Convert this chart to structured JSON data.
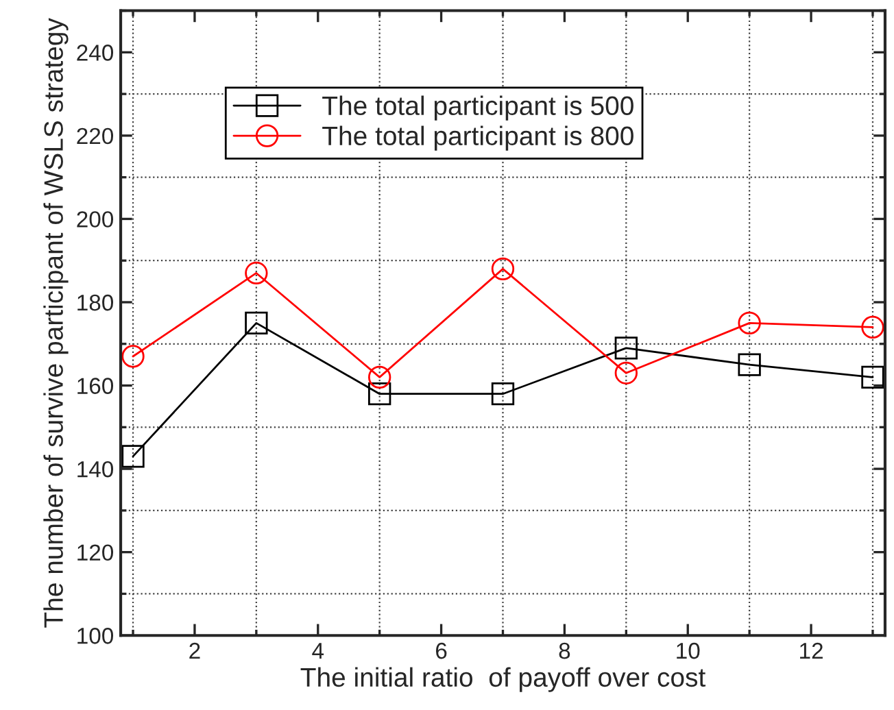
{
  "chart_data": {
    "type": "line",
    "xlabel": "The initial ratio  of payoff over cost",
    "ylabel": "The number of survive participant of WSLS strategy",
    "x": [
      1,
      3,
      5,
      7,
      9,
      11,
      13
    ],
    "series": [
      {
        "name": "The total participant is 500",
        "color": "#000000",
        "marker": "square",
        "values": [
          143,
          175,
          158,
          158,
          169,
          165,
          162
        ]
      },
      {
        "name": "The total participant is 800",
        "color": "#ff0000",
        "marker": "circle",
        "values": [
          167,
          187,
          162,
          188,
          163,
          175,
          174
        ]
      }
    ],
    "xlim": [
      0.8,
      13.2
    ],
    "xticks": [
      {
        "value": 1,
        "label": null
      },
      2,
      {
        "value": 3,
        "label": null
      },
      4,
      {
        "value": 5,
        "label": null
      },
      6,
      {
        "value": 7,
        "label": null
      },
      8,
      {
        "value": 9,
        "label": null
      },
      10,
      {
        "value": 11,
        "label": null
      },
      12,
      {
        "value": 13,
        "label": null
      }
    ],
    "ylim": [
      100,
      250
    ],
    "yticks": [
      100,
      {
        "value": 110,
        "label": null
      },
      120,
      {
        "value": 130,
        "label": null
      },
      140,
      {
        "value": 150,
        "label": null
      },
      160,
      {
        "value": 170,
        "label": null
      },
      180,
      {
        "value": 190,
        "label": null
      },
      200,
      {
        "value": 210,
        "label": null
      },
      220,
      {
        "value": 230,
        "label": null
      },
      240,
      {
        "value": 250,
        "label": null
      }
    ],
    "grid": true,
    "legend": "top",
    "line_style": "solid"
  }
}
